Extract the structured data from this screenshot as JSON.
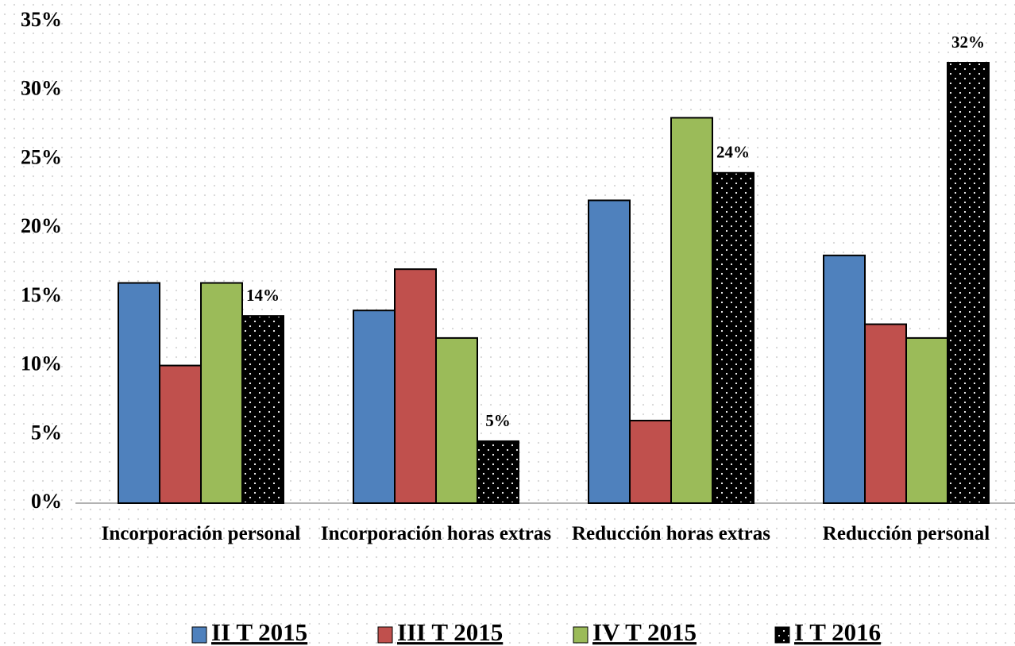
{
  "chart_data": {
    "type": "bar",
    "categories": [
      "Incorporación personal",
      "Incorporación horas extras",
      "Reducción horas extras",
      "Reducción personal"
    ],
    "series": [
      {
        "name": "II T 2015",
        "color": "#4f81bd",
        "values": [
          16,
          14,
          22,
          18
        ]
      },
      {
        "name": "III T 2015",
        "color": "#c0504d",
        "values": [
          10,
          17,
          6,
          13
        ]
      },
      {
        "name": "IV T 2015",
        "color": "#9bbb59",
        "values": [
          16,
          12,
          28,
          12
        ]
      },
      {
        "name": "I T 2016",
        "color": "#000000",
        "pattern": "dotted",
        "values": [
          13.6,
          4.5,
          24,
          32
        ],
        "value_labels": [
          "14%",
          "5%",
          "24%",
          "32%"
        ]
      }
    ],
    "ylim": [
      0,
      35
    ],
    "yticks": [
      {
        "value": 0,
        "label": "0%"
      },
      {
        "value": 5,
        "label": "5%"
      },
      {
        "value": 10,
        "label": "10%"
      },
      {
        "value": 15,
        "label": "15%"
      },
      {
        "value": 20,
        "label": "20%"
      },
      {
        "value": 25,
        "label": "25%"
      },
      {
        "value": 30,
        "label": "30%"
      },
      {
        "value": 35,
        "label": "35%"
      }
    ],
    "legend": "bottom"
  }
}
